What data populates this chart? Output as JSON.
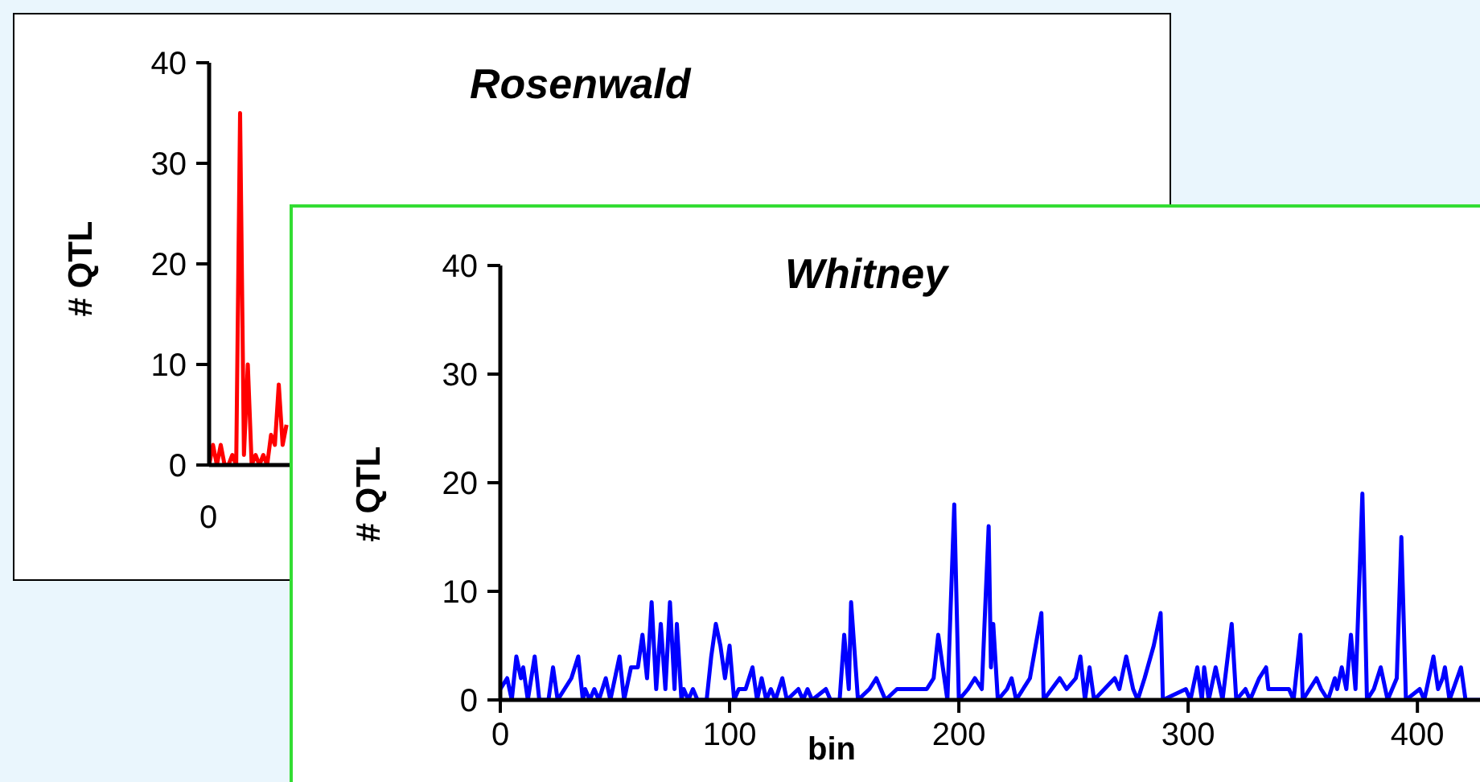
{
  "chart_data": [
    {
      "type": "line",
      "title": "Rosenwald",
      "ylabel": "# QTL",
      "annotations": [
        "0"
      ],
      "categories": [
        null,
        null,
        null,
        null,
        null,
        null,
        null,
        null,
        null,
        null,
        null,
        null,
        null,
        null,
        null,
        null,
        null,
        null,
        null,
        null,
        null,
        null,
        null,
        null,
        null,
        null,
        null,
        null,
        null,
        null,
        null,
        null,
        null,
        null,
        null,
        null,
        null,
        null,
        null,
        null,
        null,
        null,
        null,
        null,
        null,
        null,
        null,
        null,
        null,
        null,
        null,
        null,
        null,
        null,
        null,
        null,
        null,
        null,
        null,
        null,
        null,
        null,
        null,
        null,
        null,
        null,
        null,
        null,
        null,
        null,
        null,
        null,
        null,
        null,
        null,
        null,
        null,
        null,
        null,
        null,
        null,
        null,
        null,
        null,
        null,
        null,
        null,
        null,
        null,
        null,
        null,
        null,
        null,
        null,
        null,
        null,
        null,
        null,
        null,
        null,
        null,
        null,
        null,
        null,
        null,
        null,
        null,
        null,
        null,
        null,
        null,
        null,
        null,
        null,
        null,
        null,
        null,
        null,
        null,
        null,
        null,
        null,
        null,
        null,
        null,
        null,
        null,
        null,
        null,
        null,
        null,
        null,
        null,
        null,
        null,
        null,
        null,
        null,
        null,
        null,
        null,
        null,
        null,
        null,
        null,
        null,
        null,
        null,
        null,
        null,
        null,
        null,
        null,
        null,
        null,
        null,
        null,
        null,
        null,
        null,
        null,
        null,
        null,
        null,
        null,
        null,
        null,
        null,
        null,
        null,
        null,
        null,
        null,
        null,
        null,
        null,
        null,
        null,
        null,
        null,
        null,
        null,
        null,
        null,
        null,
        null,
        null,
        null,
        null,
        null,
        null,
        null,
        null,
        null,
        null,
        null,
        null,
        null,
        null,
        null,
        null,
        null,
        null,
        null,
        null,
        null,
        null,
        null,
        null,
        null,
        null,
        null,
        null,
        null,
        null,
        null,
        null,
        null,
        null,
        null,
        null,
        null,
        null,
        null,
        null,
        null,
        null,
        null,
        null,
        null,
        null,
        null,
        null,
        null,
        null,
        null,
        null,
        null
      ],
      "ylim": [
        0,
        40
      ],
      "yticks": [
        0,
        10,
        20,
        30,
        40
      ],
      "marker": "none",
      "line_style": "solid",
      "series": [
        {
          "color": "#ff0000",
          "values": [
            0,
            2,
            0,
            2,
            0,
            0,
            1,
            0,
            35,
            1,
            10,
            0,
            1,
            0,
            1,
            0,
            3,
            2,
            8,
            2,
            4,
            null,
            null,
            null,
            null,
            null,
            null,
            null,
            null,
            null,
            null,
            null,
            null,
            null,
            null,
            null,
            null,
            null,
            null,
            null,
            null,
            null,
            null,
            null,
            null,
            null,
            null,
            null,
            null,
            null,
            null,
            null,
            null,
            null,
            null,
            null,
            null,
            null,
            null,
            null,
            null,
            null,
            null,
            null,
            null,
            null,
            null,
            null,
            null,
            null,
            null,
            null,
            null,
            null,
            null,
            null,
            null,
            null,
            null,
            null,
            null,
            null,
            null,
            null,
            null,
            null,
            null,
            null,
            null,
            null,
            null,
            null,
            null,
            null,
            null,
            null,
            null,
            null,
            null,
            null,
            null,
            null,
            null,
            null,
            null,
            null,
            null,
            null,
            null,
            null,
            null,
            null,
            null,
            null,
            null,
            null,
            null,
            null,
            null,
            null,
            null,
            null,
            null,
            null,
            null,
            null,
            null,
            null,
            null,
            null,
            null,
            null,
            null,
            null,
            null,
            null,
            null,
            null,
            null,
            null,
            null,
            null,
            null,
            null,
            null,
            null,
            null,
            null,
            null,
            null,
            null,
            null,
            null,
            null,
            null,
            null,
            null,
            null,
            null,
            null,
            null,
            null,
            null,
            null,
            null,
            null,
            null,
            null,
            null,
            null,
            null,
            null,
            null,
            null,
            null,
            null,
            null,
            null,
            null,
            null,
            null,
            null,
            null,
            null,
            null,
            null,
            null,
            null,
            null,
            null,
            null,
            null,
            null,
            null,
            null,
            null,
            null,
            null,
            null,
            null,
            null,
            null,
            null,
            null,
            null,
            null,
            null,
            null,
            null,
            null,
            null,
            null,
            null,
            null,
            null,
            null,
            null,
            null,
            null,
            null,
            null,
            null,
            null,
            null,
            null,
            null,
            null,
            null,
            null,
            null,
            null,
            null,
            null,
            null,
            null,
            null,
            null,
            null
          ]
        }
      ]
    },
    {
      "type": "line",
      "title": "Whitney",
      "xlabel": "bin",
      "ylabel": "# QTL",
      "xlim": [
        0,
        428
      ],
      "xticks": [
        0,
        100,
        200,
        300,
        400
      ],
      "ylim": [
        0,
        40
      ],
      "yticks": [
        0,
        10,
        20,
        30,
        40
      ],
      "marker": "none",
      "line_style": "solid",
      "series": [
        {
          "color": "#0000ff",
          "x": [
            0,
            3,
            5,
            7,
            9,
            10,
            12,
            15,
            17,
            21,
            23,
            25,
            28,
            31,
            34,
            36,
            37,
            39,
            41,
            43,
            46,
            48,
            52,
            54,
            57,
            60,
            62,
            64,
            66,
            68,
            70,
            72,
            74,
            76,
            77,
            79,
            80,
            82,
            84,
            86,
            90,
            92,
            94,
            96,
            98,
            100,
            102,
            104,
            107,
            110,
            112,
            114,
            116,
            118,
            120,
            123,
            125,
            130,
            132,
            134,
            136,
            142,
            144,
            148,
            150,
            152,
            153,
            156,
            161,
            164,
            166,
            168,
            173,
            177,
            180,
            183,
            186,
            189,
            191,
            193,
            195,
            198,
            200,
            204,
            207,
            210,
            213,
            214,
            215,
            217,
            221,
            223,
            225,
            228,
            231,
            236,
            237,
            244,
            247,
            251,
            253,
            255,
            257,
            259,
            268,
            270,
            273,
            276,
            278,
            281,
            285,
            288,
            289,
            299,
            301,
            304,
            306,
            307,
            309,
            312,
            315,
            319,
            321,
            325,
            327,
            331,
            334,
            335,
            338,
            341,
            344,
            346,
            349,
            350,
            356,
            358,
            361,
            364,
            365,
            367,
            369,
            371,
            373,
            376,
            378,
            381,
            384,
            387,
            389,
            391,
            393,
            395,
            401,
            403,
            407,
            409,
            411,
            412,
            414,
            419,
            421,
            428
          ],
          "values": [
            1,
            2,
            0,
            4,
            2,
            3,
            0,
            4,
            0,
            0,
            3,
            0,
            1,
            2,
            4,
            0,
            1,
            0,
            1,
            0,
            2,
            0,
            4,
            0,
            3,
            3,
            6,
            2,
            9,
            1,
            7,
            1,
            9,
            1,
            7,
            0,
            1,
            0,
            1,
            0,
            0,
            4,
            7,
            5,
            2,
            5,
            0,
            1,
            1,
            3,
            0,
            2,
            0,
            1,
            0,
            2,
            0,
            1,
            0,
            1,
            0,
            1,
            0,
            0,
            6,
            1,
            9,
            0,
            1,
            2,
            1,
            0,
            1,
            1,
            1,
            1,
            1,
            2,
            6,
            3,
            0,
            18,
            0,
            1,
            2,
            1,
            16,
            3,
            7,
            0,
            1,
            2,
            0,
            1,
            2,
            8,
            0,
            2,
            1,
            2,
            4,
            0,
            3,
            0,
            2,
            1,
            4,
            1,
            0,
            2,
            5,
            8,
            0,
            1,
            0,
            3,
            0,
            3,
            0,
            3,
            0,
            7,
            0,
            1,
            0,
            2,
            3,
            1,
            1,
            1,
            1,
            0,
            6,
            0,
            2,
            1,
            0,
            2,
            1,
            3,
            1,
            6,
            1,
            19,
            0,
            1,
            3,
            0,
            1,
            2,
            15,
            0,
            1,
            0,
            4,
            1,
            2,
            3,
            0,
            3,
            0,
            0
          ]
        }
      ]
    }
  ]
}
